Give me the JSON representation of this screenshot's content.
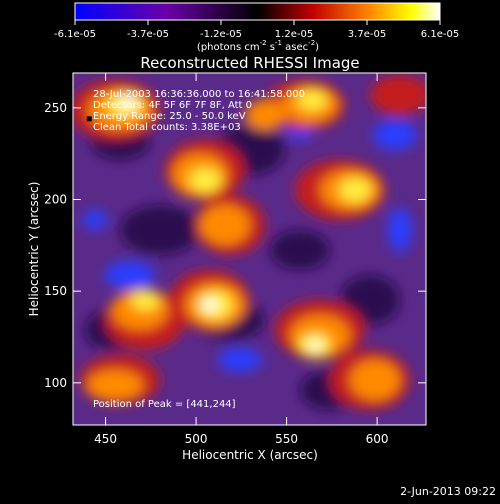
{
  "chart_data": {
    "type": "heatmap",
    "title": "Reconstructed RHESSI Image",
    "xlabel": "Heliocentric X (arcsec)",
    "ylabel": "Heliocentric Y (arcsec)",
    "xlim": [
      432,
      627
    ],
    "ylim": [
      77,
      269
    ],
    "x_ticks": [
      450,
      500,
      550,
      600
    ],
    "y_ticks": [
      100,
      150,
      200,
      250
    ],
    "colorbar": {
      "tick_labels": [
        "-6.1e-05",
        "-3.7e-05",
        "-1.2e-05",
        "1.2e-05",
        "3.7e-05",
        "6.1e-05"
      ],
      "range": [
        -6.1e-05,
        6.1e-05
      ],
      "unit_label_parts": {
        "open": "(photons cm",
        "exp1": "-2",
        "mid1": " s",
        "exp2": "-1",
        "mid2": " asec",
        "exp3": "-2",
        "close": ")"
      }
    },
    "annotations": [
      "28-Jul-2003 16:36:36.000 to 16:41:58.000",
      "Detectors: 4F 5F 6F 7F 8F, Att 0",
      "Energy Range: 25.0 - 50.0 keV",
      "Clean    Total counts: 3.38E+03"
    ],
    "peak_label": "Position of Peak = [441,244]",
    "peak_position": [
      441,
      244
    ],
    "colors": {
      "background": "#000000",
      "low": "#0000ff",
      "mid": "#000000",
      "high": "#ffffff",
      "field_base": "#5a2a8a"
    }
  },
  "footer": {
    "date_stamp": "2-Jun-2013 09:22"
  }
}
